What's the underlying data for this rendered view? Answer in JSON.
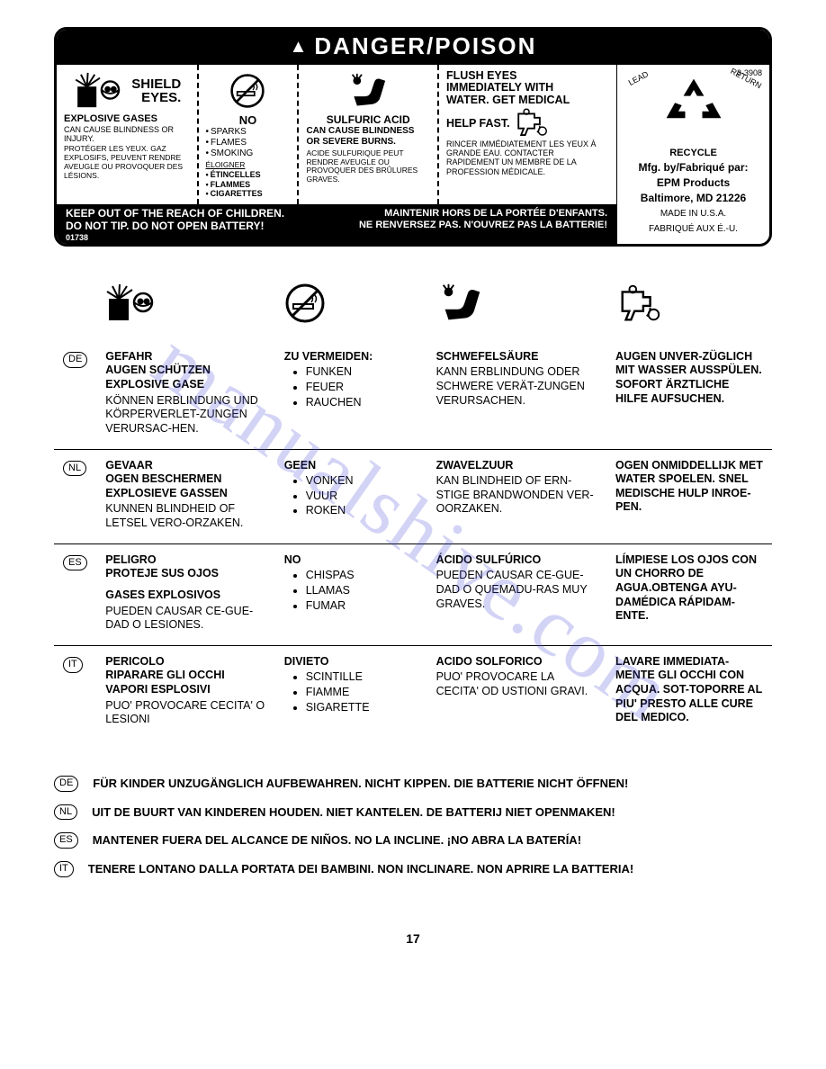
{
  "page_number": "17",
  "watermark": "manualshive.com",
  "main_label": {
    "header": "DANGER/POISON",
    "part_number": "3-3908",
    "columns": [
      {
        "title_lines": [
          "SHIELD",
          "EYES."
        ],
        "sub": "EXPLOSIVE GASES",
        "body": "CAN CAUSE BLINDNESS OR INJURY.",
        "fr": "PROTÉGER LES YEUX. GAZ EXPLOSIFS, PEUVENT RENDRE AVEUGLE OU PROVOQUER DES LÉSIONS."
      },
      {
        "title": "NO",
        "bullets_en": [
          "SPARKS",
          "FLAMES",
          "SMOKING"
        ],
        "fr_title": "ÉLOIGNER",
        "bullets_fr": [
          "ÉTINCELLES",
          "FLAMMES",
          "CIGARETTES"
        ]
      },
      {
        "title": "SULFURIC ACID",
        "sub": "CAN CAUSE BLINDNESS OR SEVERE BURNS.",
        "fr": "ACIDE SULFURIQUE PEUT RENDRE AVEUGLE OU PROVOQUER DES BRÛLURES GRAVES."
      },
      {
        "title_lines": [
          "FLUSH EYES",
          "IMMEDIATELY WITH",
          "WATER. GET MEDICAL",
          "HELP FAST."
        ],
        "fr": "RINCER IMMÉDIATEMENT LES YEUX À GRANDE EAU. CONTACTER RAPIDEMENT UN MEMBRE DE LA PROFESSION MÉDICALE."
      }
    ],
    "footer_left_1": "KEEP OUT OF THE REACH OF CHILDREN.",
    "footer_left_2": "DO NOT TIP. DO NOT OPEN BATTERY!",
    "footer_code": "01738",
    "footer_right_1": "MAINTENIR HORS DE LA PORTÉE D'ENFANTS.",
    "footer_right_2": "NE RENVERSEZ PAS. N'OUVREZ PAS LA BATTERIE!",
    "recycle_label": "RECYCLE",
    "recycle_arc_left": "LEAD",
    "recycle_arc_right": "RETURN",
    "mfg_line1": "Mfg. by/Fabriqué par:",
    "mfg_line2": "EPM Products",
    "mfg_line3": "Baltimore, MD 21226",
    "made_line1": "MADE IN U.S.A.",
    "made_line2": "FABRIQUÉ AUX É.-U."
  },
  "lang_rows": [
    {
      "code": "DE",
      "c1_bold": [
        "GEFAHR",
        "AUGEN SCHÜTZEN",
        "EXPLOSIVE GASE"
      ],
      "c1_body": "KÖNNEN ERBLINDUNG UND KÖRPERVERLET-ZUNGEN VERURSAC-HEN.",
      "c2_bold": "ZU VERMEIDEN:",
      "c2_items": [
        "FUNKEN",
        "FEUER",
        "RAUCHEN"
      ],
      "c3_bold": "SCHWEFELSÄURE",
      "c3_body": "KANN ERBLINDUNG ODER SCHWERE VERÄT-ZUNGEN VERURSACHEN.",
      "c4_bold": "AUGEN UNVER-ZÜGLICH MIT WASSER AUSSPÜLEN.  SOFORT ÄRZTLICHE HILFE AUFSUCHEN."
    },
    {
      "code": "NL",
      "c1_bold": [
        "GEVAAR",
        "OGEN BESCHERMEN",
        "EXPLOSIEVE GASSEN"
      ],
      "c1_body": "KUNNEN BLINDHEID OF LETSEL VERO-ORZAKEN.",
      "c2_bold": "GEEN",
      "c2_items": [
        "VONKEN",
        "VUUR",
        "ROKEN"
      ],
      "c3_bold": "ZWAVELZUUR",
      "c3_body": "KAN BLINDHEID OF ERN-STIGE BRANDWONDEN VER-OORZAKEN.",
      "c4_bold": "OGEN ONMIDDELLIJK MET WATER SPOELEN. SNEL MEDISCHE HULP INROE-PEN."
    },
    {
      "code": "ES",
      "c1_bold": [
        "PELIGRO",
        "PROTEJE SUS OJOS"
      ],
      "c1_bold2": "GASES EXPLOSIVOS",
      "c1_body": "PUEDEN CAUSAR CE-GUE-DAD O LESIONES.",
      "c2_bold": "NO",
      "c2_items": [
        "CHISPAS",
        "LLAMAS",
        "FUMAR"
      ],
      "c3_bold": "ÁCIDO SULFÚRICO",
      "c3_body": "PUEDEN CAUSAR CE-GUE-DAD O QUEMADU-RAS MUY GRAVES.",
      "c4_bold": "LÍMPIESE LOS OJOS CON UN CHORRO DE AGUA.OBTENGA AYU-DAMÉDICA RÁPIDAM-ENTE."
    },
    {
      "code": "IT",
      "c1_bold": [
        "PERICOLO",
        "RIPARARE GLI OCCHI",
        "VAPORI ESPLOSIVI"
      ],
      "c1_body": "PUO' PROVOCARE CECITA' O LESIONI",
      "c2_bold": "DIVIETO",
      "c2_items": [
        "SCINTILLE",
        "FIAMME",
        "SIGARETTE"
      ],
      "c3_bold": "ACIDO SOLFORICO",
      "c3_body": "PUO' PROVOCARE LA CECITA' OD USTIONI GRAVI.",
      "c4_bold": "LAVARE IMMEDIATA-MENTE GLI OCCHI CON ACQUA. SOT-TOPORRE AL PIU' PRESTO ALLE CURE DEL MEDICO."
    }
  ],
  "footnotes": [
    {
      "code": "DE",
      "text": "FÜR KINDER UNZUGÄNGLICH AUFBEWAHREN. NICHT KIPPEN. DIE BATTERIE NICHT ÖFFNEN!"
    },
    {
      "code": "NL",
      "text": "UIT DE BUURT VAN KINDEREN HOUDEN. NIET KANTELEN. DE BATTERIJ NIET OPENMAKEN!"
    },
    {
      "code": "ES",
      "text": "MANTENER  FUERA DEL ALCANCE DE NIÑOS. NO LA INCLINE. ¡NO ABRA LA BATERÍA!"
    },
    {
      "code": "IT",
      "text": "TENERE LONTANO DALLA PORTATA DEI BAMBINI. NON INCLINARE. NON APRIRE LA BATTERIA!"
    }
  ]
}
